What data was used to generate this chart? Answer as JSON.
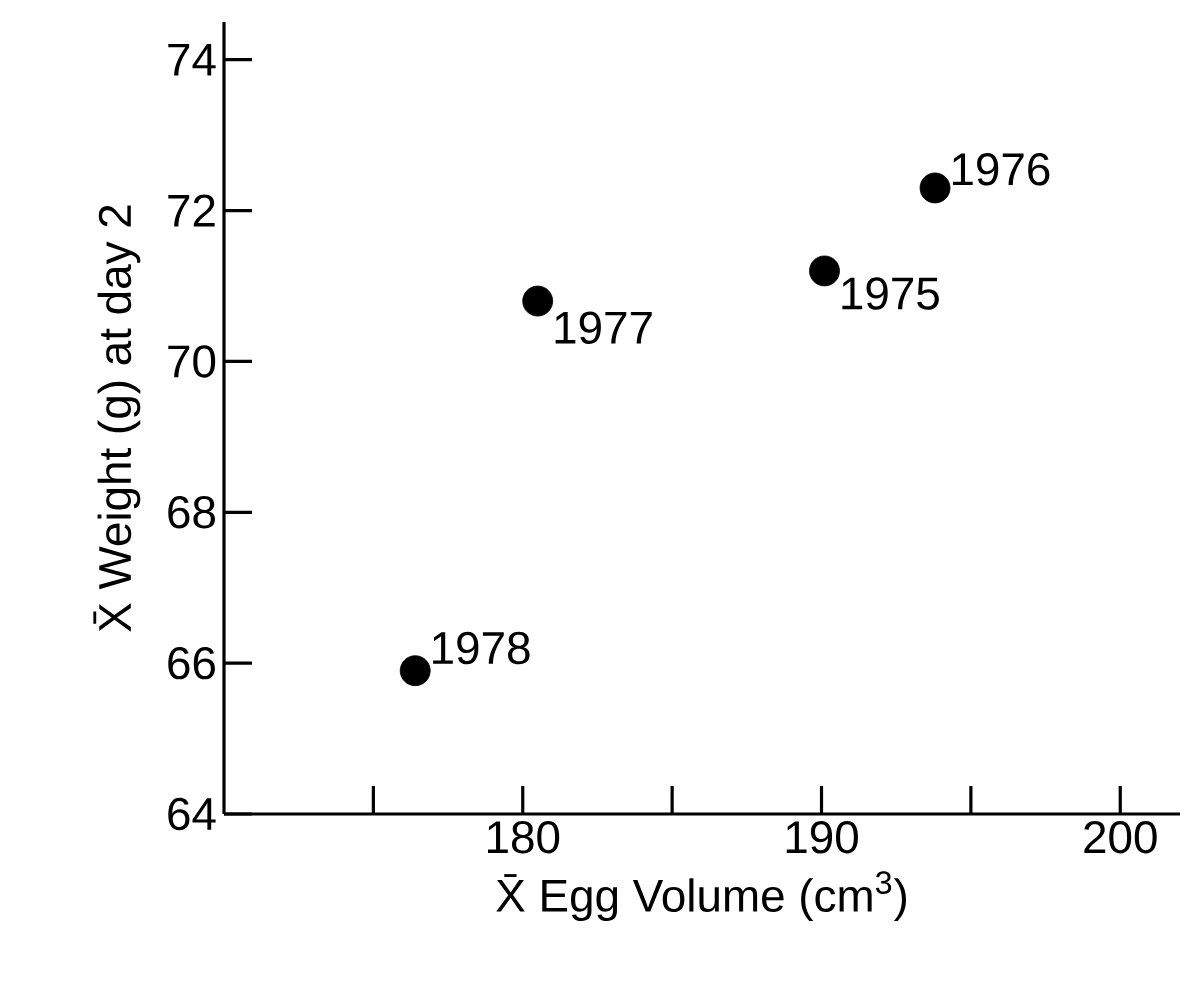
{
  "chart_data": {
    "type": "scatter",
    "xlabel": "X̄  Egg  Volume (cm$^{3}$)",
    "ylabel": "X̄  Weight (g) at day 2",
    "x": [
      176.4,
      180.5,
      190.1,
      193.8
    ],
    "values": [
      65.9,
      70.8,
      71.2,
      72.3
    ],
    "color": "#000000",
    "marker": "circle",
    "xlim": [
      170,
      202
    ],
    "ylim": [
      64,
      74.5
    ],
    "xticks": [
      {
        "value": 175,
        "label": null
      },
      180,
      {
        "value": 185,
        "label": null
      },
      190,
      {
        "value": 195,
        "label": null
      },
      200
    ],
    "yticks": [
      64,
      66,
      68,
      70,
      72,
      74
    ],
    "annotations": [
      {
        "text": "1978",
        "x": 176.4,
        "y": 65.9
      },
      {
        "text": "1977",
        "x": 180.5,
        "y": 70.8
      },
      {
        "text": "1975",
        "x": 190.1,
        "y": 71.2
      },
      {
        "text": "1976",
        "x": 193.8,
        "y": 72.3
      }
    ]
  }
}
